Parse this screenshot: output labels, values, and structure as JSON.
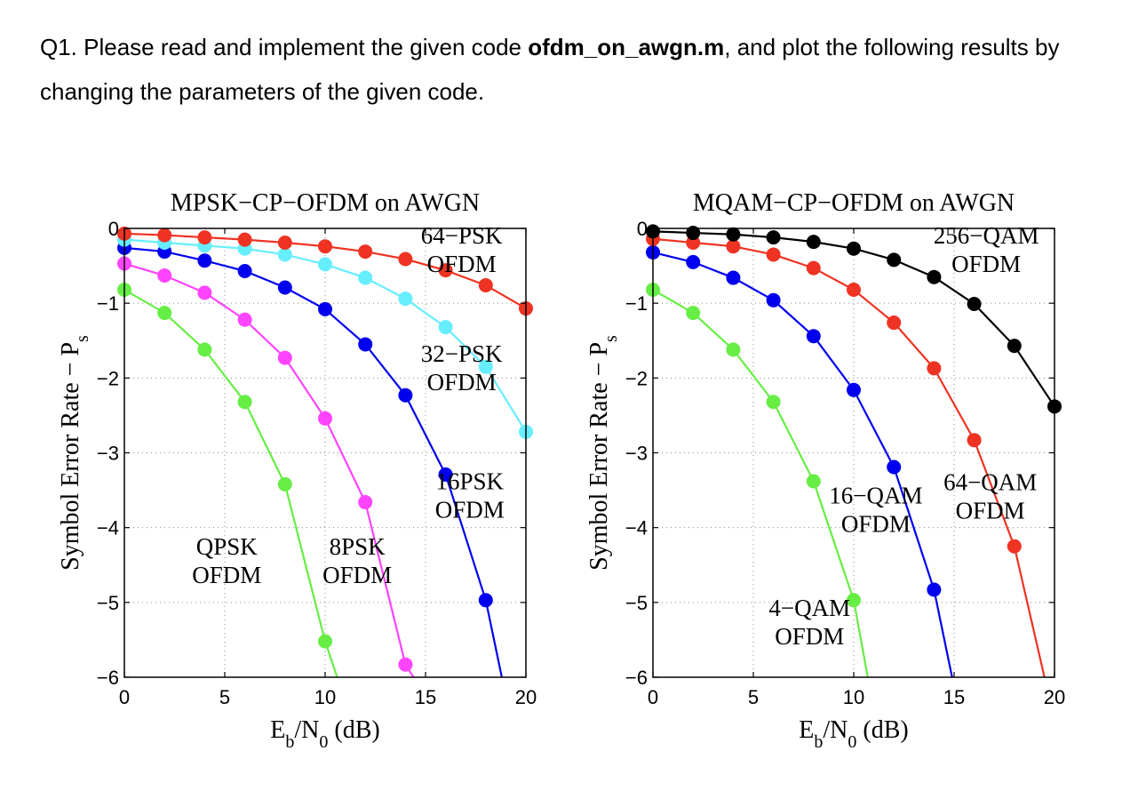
{
  "question": {
    "prefix": "Q1. Please read and implement the given code ",
    "filename": "ofdm_on_awgn.m",
    "suffix": ", and plot the following results by changing the parameters of the given code."
  },
  "chart_data": [
    {
      "type": "line",
      "title": "MPSK−CP−OFDM on AWGN",
      "xlabel": "E_b/N_0 (dB)",
      "ylabel": "Symbol Error Rate − P_s",
      "xlim": [
        0,
        20
      ],
      "ylim": [
        -6,
        0
      ],
      "xticks": [
        0,
        5,
        10,
        15,
        20
      ],
      "yticks": [
        0,
        -1,
        -2,
        -3,
        -4,
        -5,
        -6
      ],
      "grid": true,
      "series": [
        {
          "name": "QPSK OFDM",
          "color": "#66ee44",
          "x": [
            0,
            2,
            4,
            6,
            8,
            10,
            10.6
          ],
          "y": [
            -0.82,
            -1.13,
            -1.62,
            -2.32,
            -3.42,
            -5.52,
            -6.0
          ],
          "markers": [
            true,
            true,
            true,
            true,
            true,
            true,
            false
          ]
        },
        {
          "name": "8PSK OFDM",
          "color": "#ff44ff",
          "x": [
            0,
            2,
            4,
            6,
            8,
            10,
            12,
            14,
            14.4
          ],
          "y": [
            -0.47,
            -0.63,
            -0.86,
            -1.22,
            -1.73,
            -2.54,
            -3.66,
            -5.83,
            -6.0
          ],
          "markers": [
            true,
            true,
            true,
            true,
            true,
            true,
            true,
            true,
            false
          ]
        },
        {
          "name": "16PSK OFDM",
          "color": "#0000ee",
          "x": [
            0,
            2,
            4,
            6,
            8,
            10,
            12,
            14,
            16,
            18,
            18.8
          ],
          "y": [
            -0.26,
            -0.31,
            -0.43,
            -0.57,
            -0.79,
            -1.08,
            -1.55,
            -2.23,
            -3.29,
            -4.97,
            -6.0
          ],
          "markers": [
            true,
            true,
            true,
            true,
            true,
            true,
            true,
            true,
            true,
            true,
            false
          ]
        },
        {
          "name": "32PSK OFDM",
          "color": "#66eeff",
          "x": [
            0,
            2,
            4,
            6,
            8,
            10,
            12,
            14,
            16,
            18,
            20
          ],
          "y": [
            -0.15,
            -0.19,
            -0.23,
            -0.27,
            -0.35,
            -0.48,
            -0.66,
            -0.94,
            -1.32,
            -1.85,
            -2.72
          ],
          "markers": [
            true,
            true,
            true,
            true,
            true,
            true,
            true,
            true,
            true,
            true,
            true
          ]
        },
        {
          "name": "64PSK OFDM",
          "color": "#ee3322",
          "x": [
            0,
            2,
            4,
            6,
            8,
            10,
            12,
            14,
            16,
            18,
            20
          ],
          "y": [
            -0.07,
            -0.09,
            -0.12,
            -0.15,
            -0.19,
            -0.24,
            -0.31,
            -0.41,
            -0.56,
            -0.76,
            -1.07
          ],
          "markers": [
            true,
            true,
            true,
            true,
            true,
            true,
            true,
            true,
            true,
            true,
            true
          ]
        }
      ],
      "annotations": [
        {
          "lines": [
            "64−PSK",
            "OFDM"
          ],
          "x": 16.8,
          "y": -0.2
        },
        {
          "lines": [
            "32−PSK",
            "OFDM"
          ],
          "x": 16.8,
          "y": -1.78
        },
        {
          "lines": [
            "16PSK",
            "OFDM"
          ],
          "x": 17.2,
          "y": -3.49
        },
        {
          "lines": [
            "QPSK",
            "OFDM"
          ],
          "x": 5.1,
          "y": -4.36
        },
        {
          "lines": [
            "8PSK",
            "OFDM"
          ],
          "x": 11.6,
          "y": -4.36
        }
      ]
    },
    {
      "type": "line",
      "title": "MQAM−CP−OFDM on AWGN",
      "xlabel": "E_b/N_0 (dB)",
      "ylabel": "Symbol Error Rate − P_s",
      "xlim": [
        0,
        20
      ],
      "ylim": [
        -6,
        0
      ],
      "xticks": [
        0,
        5,
        10,
        15,
        20
      ],
      "yticks": [
        0,
        -1,
        -2,
        -3,
        -4,
        -5,
        -6
      ],
      "grid": true,
      "series": [
        {
          "name": "4−QAM OFDM",
          "color": "#66ee44",
          "x": [
            0,
            2,
            4,
            6,
            8,
            10,
            10.7
          ],
          "y": [
            -0.82,
            -1.13,
            -1.62,
            -2.32,
            -3.38,
            -4.97,
            -6.0
          ],
          "markers": [
            true,
            true,
            true,
            true,
            true,
            true,
            false
          ]
        },
        {
          "name": "16−QAM OFDM",
          "color": "#0000ee",
          "x": [
            0,
            2,
            4,
            6,
            8,
            10,
            12,
            14,
            14.9
          ],
          "y": [
            -0.32,
            -0.45,
            -0.66,
            -0.96,
            -1.44,
            -2.16,
            -3.19,
            -4.83,
            -6.0
          ],
          "markers": [
            true,
            true,
            true,
            true,
            true,
            true,
            true,
            true,
            false
          ]
        },
        {
          "name": "64−QAM OFDM",
          "color": "#ee3322",
          "x": [
            0,
            2,
            4,
            6,
            8,
            10,
            12,
            14,
            16,
            18,
            19.5
          ],
          "y": [
            -0.14,
            -0.19,
            -0.24,
            -0.35,
            -0.53,
            -0.82,
            -1.26,
            -1.87,
            -2.83,
            -4.25,
            -6.0
          ],
          "markers": [
            true,
            true,
            true,
            true,
            true,
            true,
            true,
            true,
            true,
            true,
            false
          ]
        },
        {
          "name": "256−QAM OFDM",
          "color": "#000000",
          "x": [
            0,
            2,
            4,
            6,
            8,
            10,
            12,
            14,
            16,
            18,
            20
          ],
          "y": [
            -0.04,
            -0.06,
            -0.08,
            -0.12,
            -0.18,
            -0.27,
            -0.42,
            -0.65,
            -1.01,
            -1.57,
            -2.38
          ],
          "markers": [
            true,
            true,
            true,
            true,
            true,
            true,
            true,
            true,
            true,
            true,
            true
          ]
        }
      ],
      "annotations": [
        {
          "lines": [
            "256−QAM",
            "OFDM"
          ],
          "x": 16.6,
          "y": -0.2
        },
        {
          "lines": [
            "64−QAM",
            "OFDM"
          ],
          "x": 16.8,
          "y": -3.5
        },
        {
          "lines": [
            "16−QAM",
            "OFDM"
          ],
          "x": 11.1,
          "y": -3.68
        },
        {
          "lines": [
            "4−QAM",
            "OFDM"
          ],
          "x": 7.8,
          "y": -5.18
        }
      ]
    }
  ]
}
